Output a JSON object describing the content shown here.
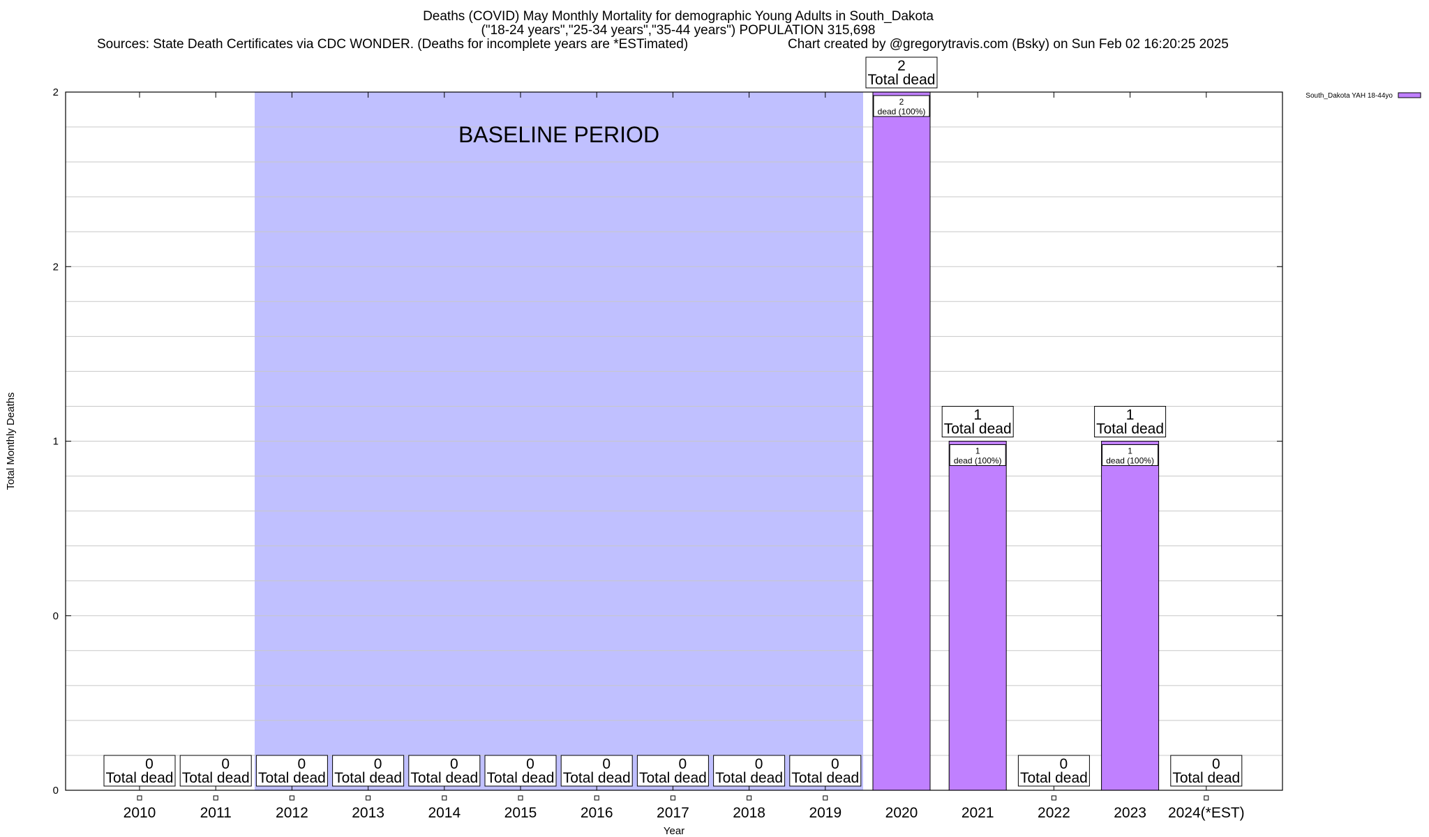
{
  "header": {
    "title_line1": "Deaths (COVID) May Monthly Mortality for demographic Young Adults in South_Dakota",
    "title_line2": "(\"18-24 years\",\"25-34 years\",\"35-44 years\") POPULATION 315,698",
    "sources": "Sources: State Death Certificates via CDC WONDER. (Deaths for incomplete years are *ESTimated)",
    "credit": "Chart created by @gregorytravis.com (Bsky) on Sun Feb 02 16:20:25 2025"
  },
  "chart_data": {
    "type": "bar",
    "categories": [
      "2010",
      "2011",
      "2012",
      "2013",
      "2014",
      "2015",
      "2016",
      "2017",
      "2018",
      "2019",
      "2020",
      "2021",
      "2022",
      "2023",
      "2024(*EST)"
    ],
    "series": [
      {
        "name": "South_Dakota YAH 18-44yo",
        "values": [
          0,
          0,
          0,
          0,
          0,
          0,
          0,
          0,
          0,
          0,
          2,
          1,
          0,
          1,
          0
        ],
        "color": "#c080ff"
      }
    ],
    "xlabel": "Year",
    "ylabel": "Total Monthly Deaths",
    "ylim": [
      0,
      2
    ],
    "ytick_labels": [
      "0",
      "0",
      "1",
      "2",
      "2"
    ],
    "grid": true,
    "legend_position": "top-right",
    "total_label_word": "Total dead",
    "segment_label_suffix": "dead (100%)",
    "baseline": {
      "label": "BASELINE PERIOD",
      "start": "2012",
      "end": "2019",
      "color": "#c0c0ff"
    }
  }
}
